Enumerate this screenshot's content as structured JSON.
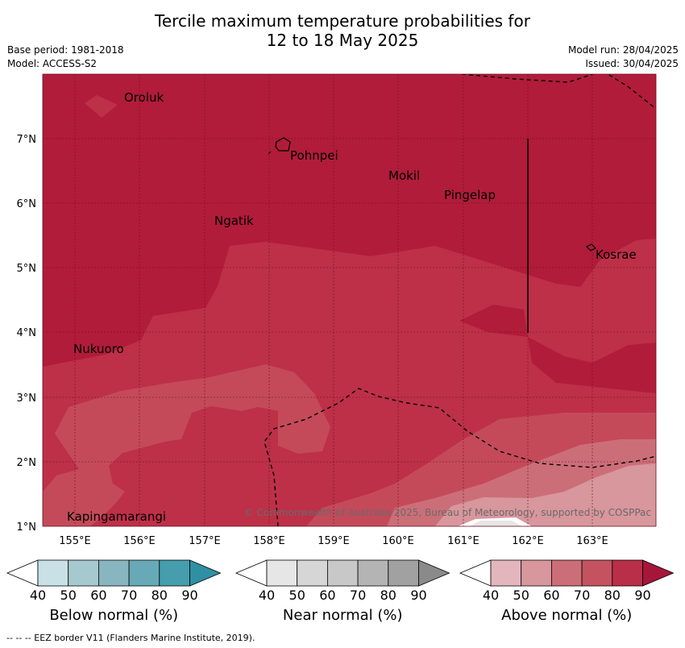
{
  "header": {
    "title_line1": "Tercile maximum temperature probabilities for",
    "title_line2": "12 to 18 May 2025",
    "base_period": "Base period: 1981-2018",
    "model": "Model: ACCESS-S2",
    "model_run": "Model run: 28/04/2025",
    "issued": "Issued: 30/04/2025"
  },
  "map": {
    "lon_ticks": [
      "155°E",
      "156°E",
      "157°E",
      "158°E",
      "159°E",
      "160°E",
      "161°E",
      "162°E",
      "163°E"
    ],
    "lat_ticks": [
      "7°N",
      "6°N",
      "5°N",
      "4°N",
      "3°N",
      "2°N",
      "1°N"
    ],
    "places": [
      {
        "name": "Oroluk"
      },
      {
        "name": "Pohnpei"
      },
      {
        "name": "Mokil"
      },
      {
        "name": "Pingelap"
      },
      {
        "name": "Ngatik"
      },
      {
        "name": "Kosrae"
      },
      {
        "name": "Nukuoro"
      },
      {
        "name": "Kapingamarangi"
      }
    ],
    "copyright": "© Commonwealth of Australia 2025, Bureau of Meteorology, supported by COSPPac",
    "colors": {
      "above_90": "#b11c3a",
      "above_80": "#bd3048",
      "above_70": "#c44a5a",
      "above_60": "#cc6e78",
      "above_50": "#d8969d",
      "near_40": "#e6e6e6"
    }
  },
  "colorbars": [
    {
      "title": "Below normal (%)",
      "ticks": [
        "40",
        "50",
        "60",
        "70",
        "80",
        "90"
      ],
      "colors": [
        "#c9e1e6",
        "#a6c9cf",
        "#88b6c0",
        "#67a9b7",
        "#459dae",
        "#2f8fa3"
      ]
    },
    {
      "title": "Near normal (%)",
      "ticks": [
        "40",
        "50",
        "60",
        "70",
        "80",
        "90"
      ],
      "colors": [
        "#e6e6e6",
        "#d6d6d6",
        "#c8c8c8",
        "#b4b4b4",
        "#a1a1a1",
        "#8a8a8a"
      ]
    },
    {
      "title": "Above normal (%)",
      "ticks": [
        "40",
        "50",
        "60",
        "70",
        "80",
        "90"
      ],
      "colors": [
        "#e3b6bd",
        "#d8969d",
        "#cc6e78",
        "#c4535f",
        "#b92f48",
        "#a6163a"
      ]
    }
  ],
  "footer": {
    "eez_legend": "--  --  -- EEZ border V11 (Flanders Marine Institute, 2019)."
  }
}
